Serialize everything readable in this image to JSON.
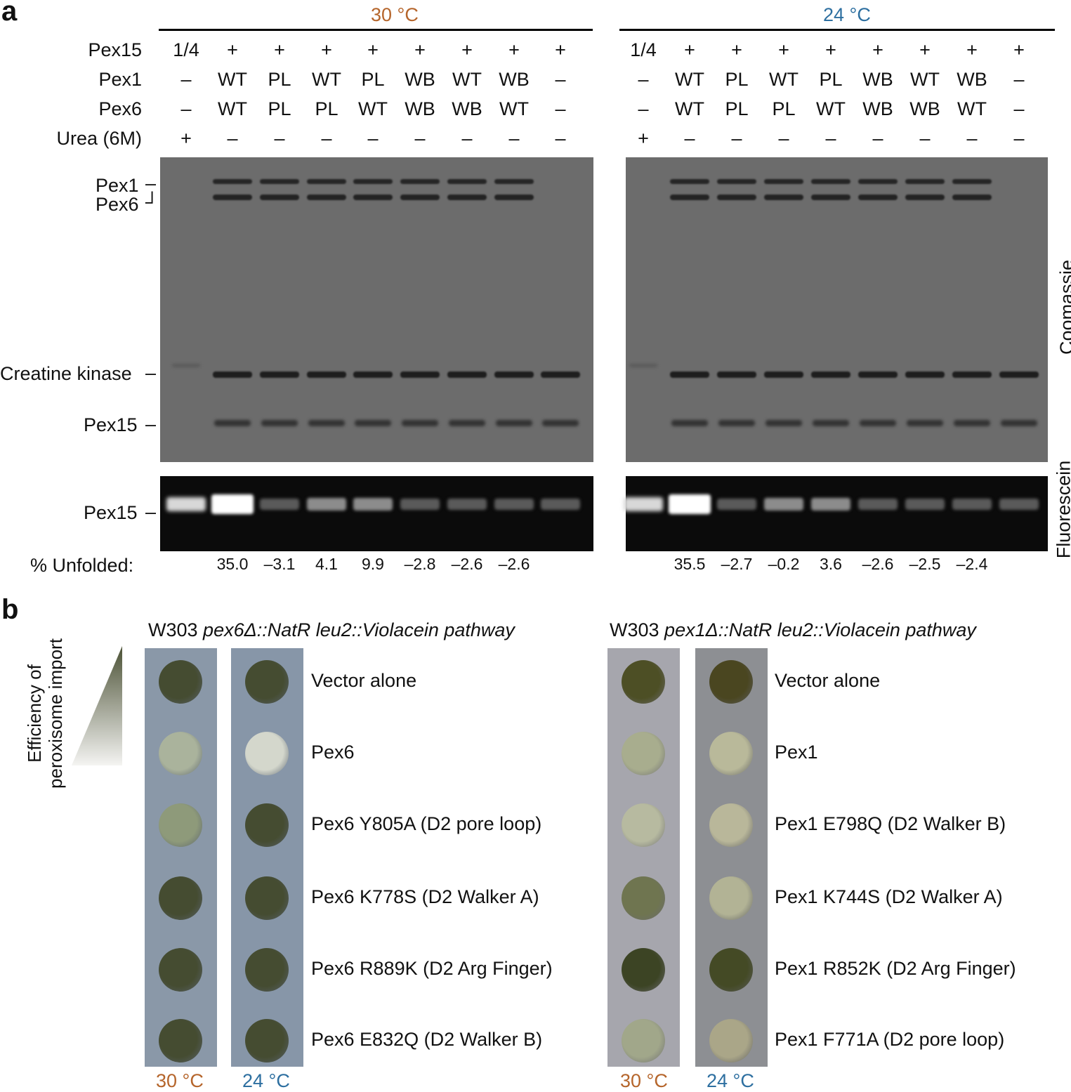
{
  "panel_a": {
    "letter": "a",
    "colors": {
      "warm": "#b5652b",
      "cool": "#2d6fa0"
    },
    "gel_left": {
      "temp": "30 °C",
      "pex15": [
        "1/4",
        "+",
        "+",
        "+",
        "+",
        "+",
        "+",
        "+",
        "+"
      ],
      "pex1": [
        "–",
        "WT",
        "PL",
        "WT",
        "PL",
        "WB",
        "WT",
        "WB",
        "–"
      ],
      "pex6": [
        "–",
        "WT",
        "PL",
        "PL",
        "WT",
        "WB",
        "WB",
        "WT",
        "–"
      ],
      "urea": [
        "+",
        "–",
        "–",
        "–",
        "–",
        "–",
        "–",
        "–",
        "–"
      ],
      "unfolded": [
        "",
        "35.0",
        "–3.1",
        "4.1",
        "9.9",
        "–2.8",
        "–2.6",
        "–2.6",
        ""
      ]
    },
    "gel_right": {
      "temp": "24 °C",
      "pex15": [
        "1/4",
        "+",
        "+",
        "+",
        "+",
        "+",
        "+",
        "+",
        "+"
      ],
      "pex1": [
        "–",
        "WT",
        "PL",
        "WT",
        "PL",
        "WB",
        "WT",
        "WB",
        "–"
      ],
      "pex6": [
        "–",
        "WT",
        "PL",
        "PL",
        "WT",
        "WB",
        "WB",
        "WT",
        "–"
      ],
      "urea": [
        "+",
        "–",
        "–",
        "–",
        "–",
        "–",
        "–",
        "–",
        "–"
      ],
      "unfolded": [
        "",
        "35.5",
        "–2.7",
        "–0.2",
        "3.6",
        "–2.6",
        "–2.5",
        "–2.4",
        ""
      ]
    },
    "row_labels": {
      "pex15": "Pex15",
      "pex1": "Pex1",
      "pex6": "Pex6",
      "urea": "Urea (6M)"
    },
    "markers": {
      "pex1": "Pex1",
      "pex6": "Pex6",
      "ck": "Creatine kinase",
      "pex15": "Pex15",
      "pex15_fl": "Pex15"
    },
    "unfolded_label": "% Unfolded:",
    "side_labels": {
      "coomassie": "Coomassie",
      "fluorescein": "Fluorescein"
    }
  },
  "panel_b": {
    "letter": "b",
    "axis_label_1": "Efficiency of",
    "axis_label_2": "peroxisome import",
    "left": {
      "strain_prefix": "W303 ",
      "strain_italic": "pex6Δ::NatR leu2::Violacein pathway",
      "rows": [
        "Vector alone",
        "Pex6",
        "Pex6 Y805A (D2 pore loop)",
        "Pex6 K778S (D2 Walker A)",
        "Pex6 R889K (D2 Arg Finger)",
        "Pex6 E832Q (D2 Walker B)"
      ],
      "temps": [
        "30 °C",
        "24 °C"
      ]
    },
    "right": {
      "strain_prefix": "W303 ",
      "strain_italic": "pex1Δ::NatR leu2::Violacein pathway",
      "rows": [
        "Vector alone",
        "Pex1",
        "Pex1 E798Q (D2 Walker B)",
        "Pex1 K744S (D2 Walker A)",
        "Pex1 R852K (D2 Arg Finger)",
        "Pex1 F771A (D2 pore loop)"
      ],
      "temps": [
        "30 °C",
        "24 °C"
      ]
    }
  }
}
